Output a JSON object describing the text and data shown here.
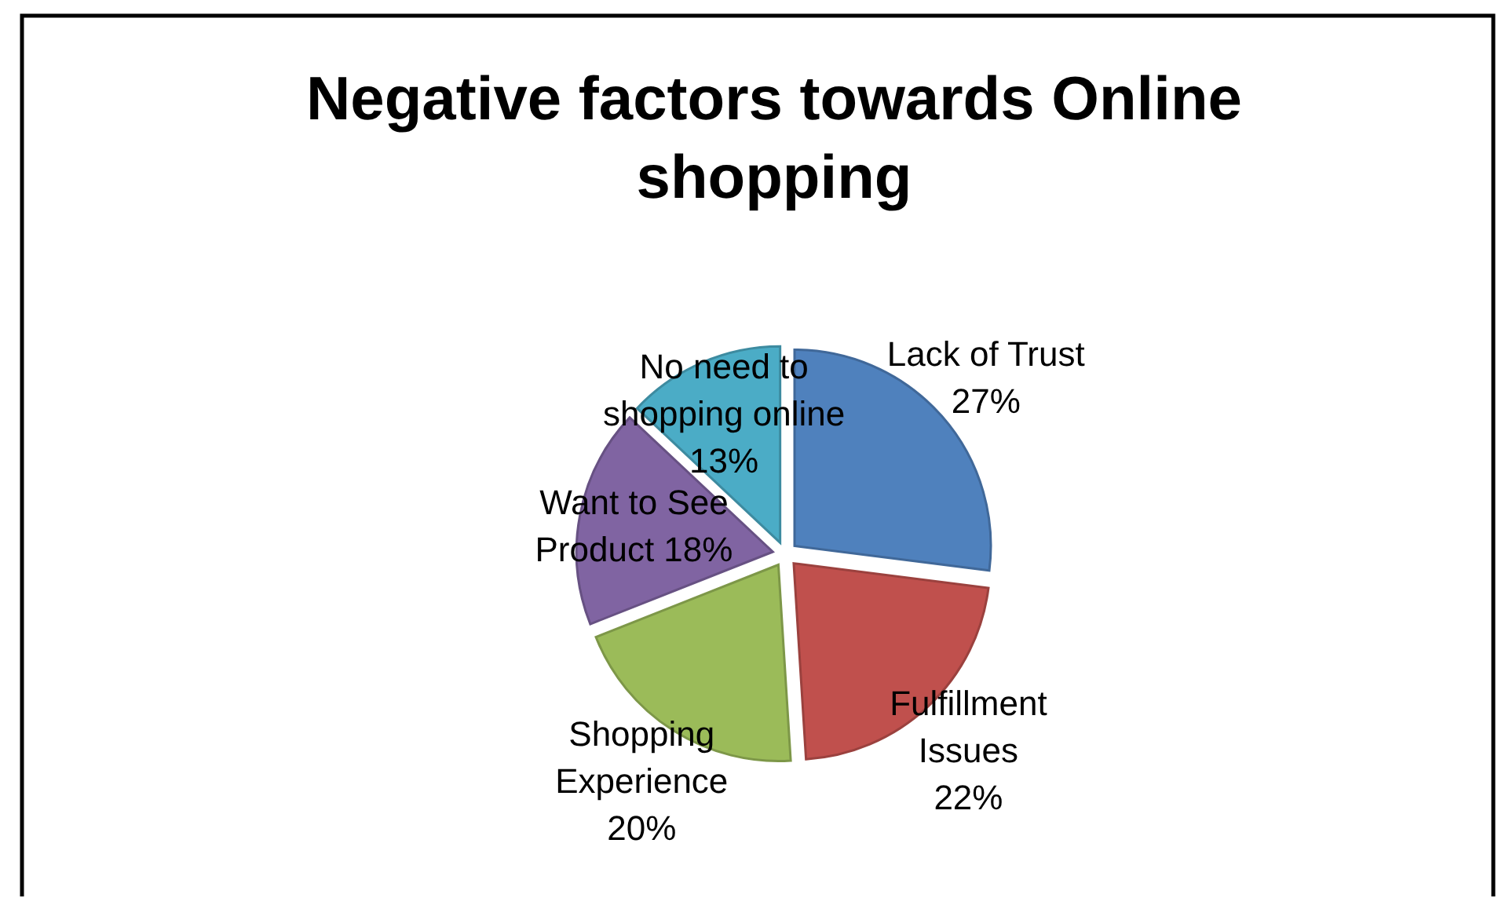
{
  "chart_data": {
    "type": "pie",
    "title": "Negative factors towards  Online shopping",
    "categories": [
      "Lack of Trust",
      "Fulfillment Issues",
      "Shopping Experience",
      "Want to See Product",
      "No need to shopping online"
    ],
    "values": [
      27,
      22,
      20,
      18,
      13
    ],
    "value_labels": [
      "27%",
      "22%",
      "20%",
      "18%",
      "13%"
    ],
    "colors": [
      "#4f81bd",
      "#c0504d",
      "#9bbb59",
      "#8064a2",
      "#4bacc6"
    ]
  }
}
